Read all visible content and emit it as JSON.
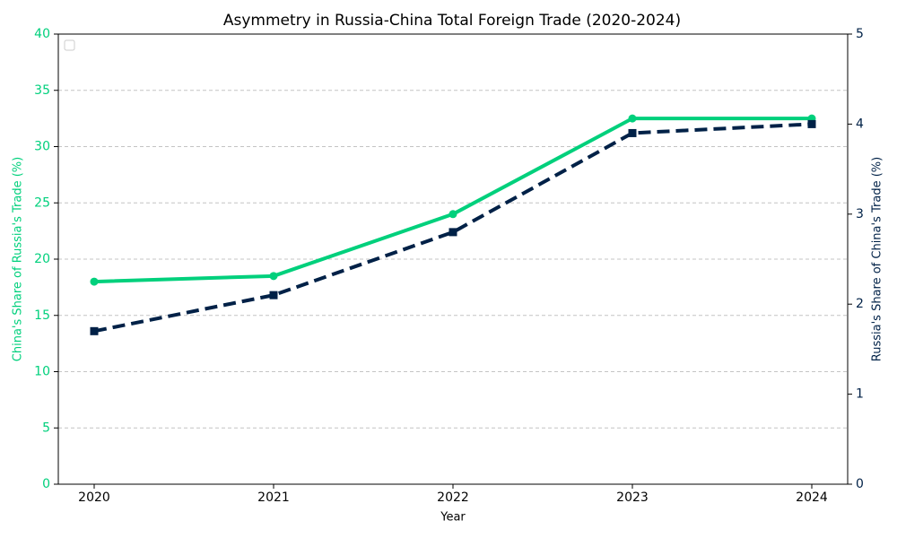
{
  "chart_data": {
    "type": "line",
    "title": "Asymmetry in Russia-China Total Foreign Trade (2020-2024)",
    "xlabel": "Year",
    "ylabel": "China's Share of Russia's Trade (%)",
    "y2label": "Russia's Share of China's Trade (%)",
    "x": [
      2020,
      2021,
      2022,
      2023,
      2024
    ],
    "xlim": [
      2019.8,
      2024.2
    ],
    "xticks": [
      2020,
      2021,
      2022,
      2023,
      2024
    ],
    "ylim": [
      0,
      40
    ],
    "yticks": [
      0,
      5,
      10,
      15,
      20,
      25,
      30,
      35,
      40
    ],
    "y2lim": [
      0,
      5
    ],
    "y2ticks": [
      0,
      1,
      2,
      3,
      4,
      5
    ],
    "grid": true,
    "series": [
      {
        "color": "#00d07c",
        "line_style": "solid",
        "marker": "circle",
        "values": [
          18,
          18.5,
          24,
          32.5,
          32.5
        ]
      },
      {
        "color": "#002147",
        "line_style": "dashed",
        "marker": "square",
        "axis": "y2",
        "values": [
          1.7,
          2.1,
          2.8,
          3.9,
          4.0
        ]
      }
    ]
  }
}
